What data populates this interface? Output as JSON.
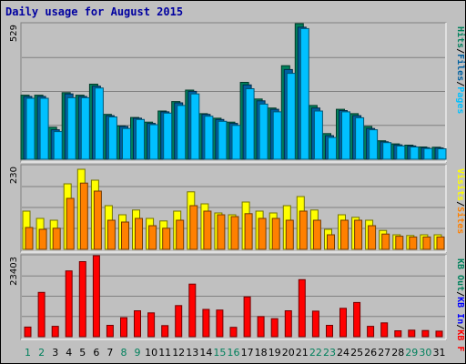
{
  "title": "Daily usage for August 2015",
  "colors": {
    "background": "#c0c0c0",
    "hits": "#00805c",
    "files": "#0060a0",
    "pages": "#00c0ff",
    "visits": "#ffff00",
    "sites": "#ff8000",
    "kbin": "#0000ff",
    "kbout": "#00805c",
    "kbf": "#ff0000",
    "title": "#0000a0",
    "weekday": "#000000",
    "weekend": "#00805c"
  },
  "chart_data": {
    "type": "bar",
    "title": "Daily usage for August 2015",
    "x": [
      1,
      2,
      3,
      4,
      5,
      6,
      7,
      8,
      9,
      10,
      11,
      12,
      13,
      14,
      15,
      16,
      17,
      18,
      19,
      20,
      21,
      22,
      23,
      24,
      25,
      26,
      27,
      28,
      29,
      30,
      31
    ],
    "weekend_days": [
      1,
      2,
      8,
      9,
      15,
      16,
      22,
      23,
      29,
      30
    ],
    "panels": [
      {
        "name": "pages-files-hits",
        "max_label": "529",
        "ylim": [
          0,
          529
        ],
        "legend": [
          {
            "label": "Pages",
            "color": "#00c0ff"
          },
          {
            "label": "Files",
            "color": "#0060a0"
          },
          {
            "label": "Hits",
            "color": "#00805c"
          }
        ],
        "series": [
          {
            "name": "Hits",
            "values": [
              250,
              250,
              125,
              260,
              250,
              293,
              175,
              130,
              163,
              145,
              188,
              225,
              270,
              178,
              160,
              145,
              300,
              235,
              200,
              365,
              529,
              210,
              100,
              195,
              178,
              128,
              72,
              60,
              55,
              48,
              47
            ]
          },
          {
            "name": "Files",
            "values": [
              245,
              245,
              115,
              255,
              245,
              285,
              170,
              128,
              160,
              140,
              185,
              220,
              265,
              175,
              155,
              140,
              290,
              228,
              195,
              350,
              515,
              200,
              92,
              190,
              170,
              120,
              68,
              56,
              52,
              45,
              44
            ]
          },
          {
            "name": "Pages",
            "values": [
              238,
              238,
              108,
              240,
              240,
              278,
              165,
              120,
              155,
              135,
              180,
              210,
              255,
              168,
              148,
              132,
              275,
              215,
              185,
              335,
              510,
              188,
              85,
              185,
              162,
              115,
              65,
              52,
              48,
              42,
              41
            ]
          }
        ]
      },
      {
        "name": "sites-visits",
        "max_label": "230",
        "ylim": [
          0,
          230
        ],
        "legend": [
          {
            "label": "Sites",
            "color": "#ff8000"
          },
          {
            "label": "Visits",
            "color": "#ffff00"
          }
        ],
        "series": [
          {
            "name": "Visits",
            "values": [
              105,
              85,
              80,
              180,
              220,
              190,
              120,
              95,
              108,
              85,
              78,
              105,
              158,
              125,
              100,
              95,
              130,
              105,
              100,
              120,
              145,
              108,
              55,
              95,
              88,
              80,
              52,
              40,
              38,
              40,
              40
            ]
          },
          {
            "name": "Sites",
            "values": [
              60,
              55,
              58,
              140,
              182,
              160,
              80,
              75,
              85,
              65,
              58,
              80,
              120,
              105,
              95,
              90,
              98,
              85,
              85,
              80,
              105,
              80,
              40,
              80,
              80,
              65,
              42,
              36,
              34,
              34,
              34
            ]
          }
        ]
      },
      {
        "name": "kbf-kbin-kbout",
        "max_label": "23403",
        "ylim": [
          0,
          23403
        ],
        "legend": [
          {
            "label": "KB F",
            "color": "#ff0000"
          },
          {
            "label": "KB In",
            "color": "#0000ff"
          },
          {
            "label": "KB Out",
            "color": "#00805c"
          }
        ],
        "series": [
          {
            "name": "KB F",
            "values": [
              2800,
              12800,
              3000,
              19000,
              21700,
              23403,
              3300,
              5500,
              7500,
              6900,
              3200,
              9000,
              15200,
              7900,
              7700,
              2700,
              11500,
              5800,
              5200,
              7500,
              16500,
              7400,
              3300,
              8200,
              9900,
              3000,
              4000,
              1700,
              1900,
              1800,
              1600
            ]
          }
        ]
      }
    ]
  }
}
